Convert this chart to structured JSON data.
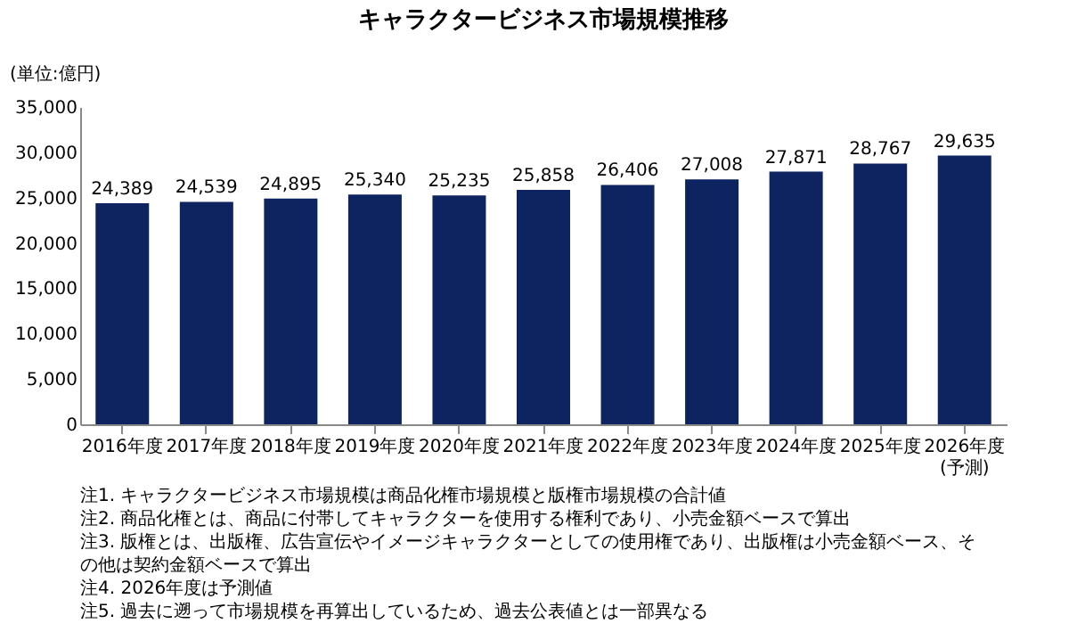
{
  "chart_data": {
    "type": "bar",
    "title": "キャラクタービジネス市場規模推移",
    "ylabel": "(単位:億円)",
    "categories": [
      "2016年度",
      "2017年度",
      "2018年度",
      "2019年度",
      "2020年度",
      "2021年度",
      "2022年度",
      "2023年度",
      "2024年度",
      "2025年度",
      "2026年度(予測)"
    ],
    "values": [
      24389,
      24539,
      24895,
      25340,
      25235,
      25858,
      26406,
      27008,
      27871,
      28767,
      29635
    ],
    "value_labels": [
      "24,389",
      "24,539",
      "24,895",
      "25,340",
      "25,235",
      "25,858",
      "26,406",
      "27,008",
      "27,871",
      "28,767",
      "29,635"
    ],
    "color": "#0d2461",
    "ylim": [
      0,
      35000
    ],
    "yticks": [
      0,
      {
        "value": 5000,
        "label": "5,000"
      },
      {
        "value": 10000,
        "label": "10,000"
      },
      {
        "value": 15000,
        "label": "15,000"
      },
      {
        "value": 20000,
        "label": "20,000"
      },
      {
        "value": 25000,
        "label": "25,000"
      },
      {
        "value": 30000,
        "label": "30,000"
      },
      {
        "value": 35000,
        "label": "35,000"
      }
    ],
    "grid": false,
    "annotations": [
      "注1. キャラクタービジネス市場規模は商品化権市場規模と版権市場規模の合計値",
      "注2. 商品化権とは、商品に付帯してキャラクターを使用する権利であり、小売金額ベースで算出",
      "注3. 版権とは、出版権、広告宣伝やイメージキャラクターとしての使用権であり、出版権は小売金額ベース、その他は契約金額ベースで算出",
      "注4. 2026年度は予測値",
      "注5. 過去に遡って市場規模を再算出しているため、過去公表値とは一部異なる"
    ]
  }
}
